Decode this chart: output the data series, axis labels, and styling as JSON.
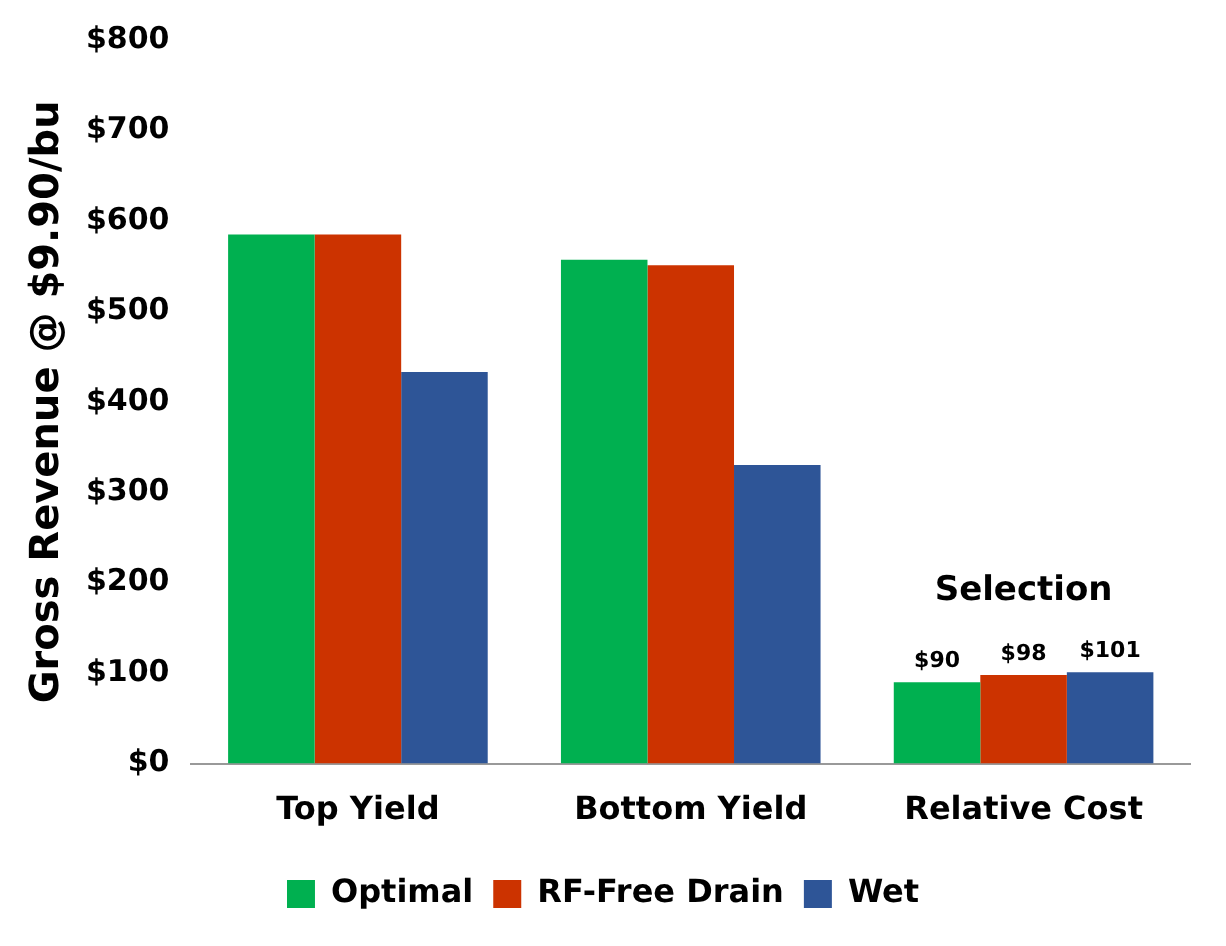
{
  "chart_data": {
    "type": "bar",
    "ylabel": "Gross Revenue @ $9.90/bu",
    "categories": [
      "Top Yield",
      "Bottom Yield",
      "Relative Cost"
    ],
    "series": [
      {
        "name": "Optimal",
        "color": "#00b050",
        "values": [
          585,
          557,
          90
        ],
        "value_labels": [
          null,
          null,
          "$90"
        ]
      },
      {
        "name": "RF-Free Drain",
        "color": "#cc3300",
        "values": [
          585,
          551,
          98
        ],
        "value_labels": [
          null,
          null,
          "$98"
        ]
      },
      {
        "name": "Wet",
        "color": "#2e5597",
        "values": [
          433,
          330,
          101
        ],
        "value_labels": [
          null,
          null,
          "$101"
        ]
      }
    ],
    "ylim": [
      0,
      800
    ],
    "yticks": [
      {
        "value": 0,
        "label": "$0"
      },
      {
        "value": 100,
        "label": "$100"
      },
      {
        "value": 200,
        "label": "$200"
      },
      {
        "value": 300,
        "label": "$300"
      },
      {
        "value": 400,
        "label": "$400"
      },
      {
        "value": 500,
        "label": "$500"
      },
      {
        "value": 600,
        "label": "$600"
      },
      {
        "value": 700,
        "label": "$700"
      },
      {
        "value": 800,
        "label": "$800"
      }
    ],
    "annotations": [
      "Selection"
    ],
    "grid": false,
    "legend": "bottom"
  }
}
